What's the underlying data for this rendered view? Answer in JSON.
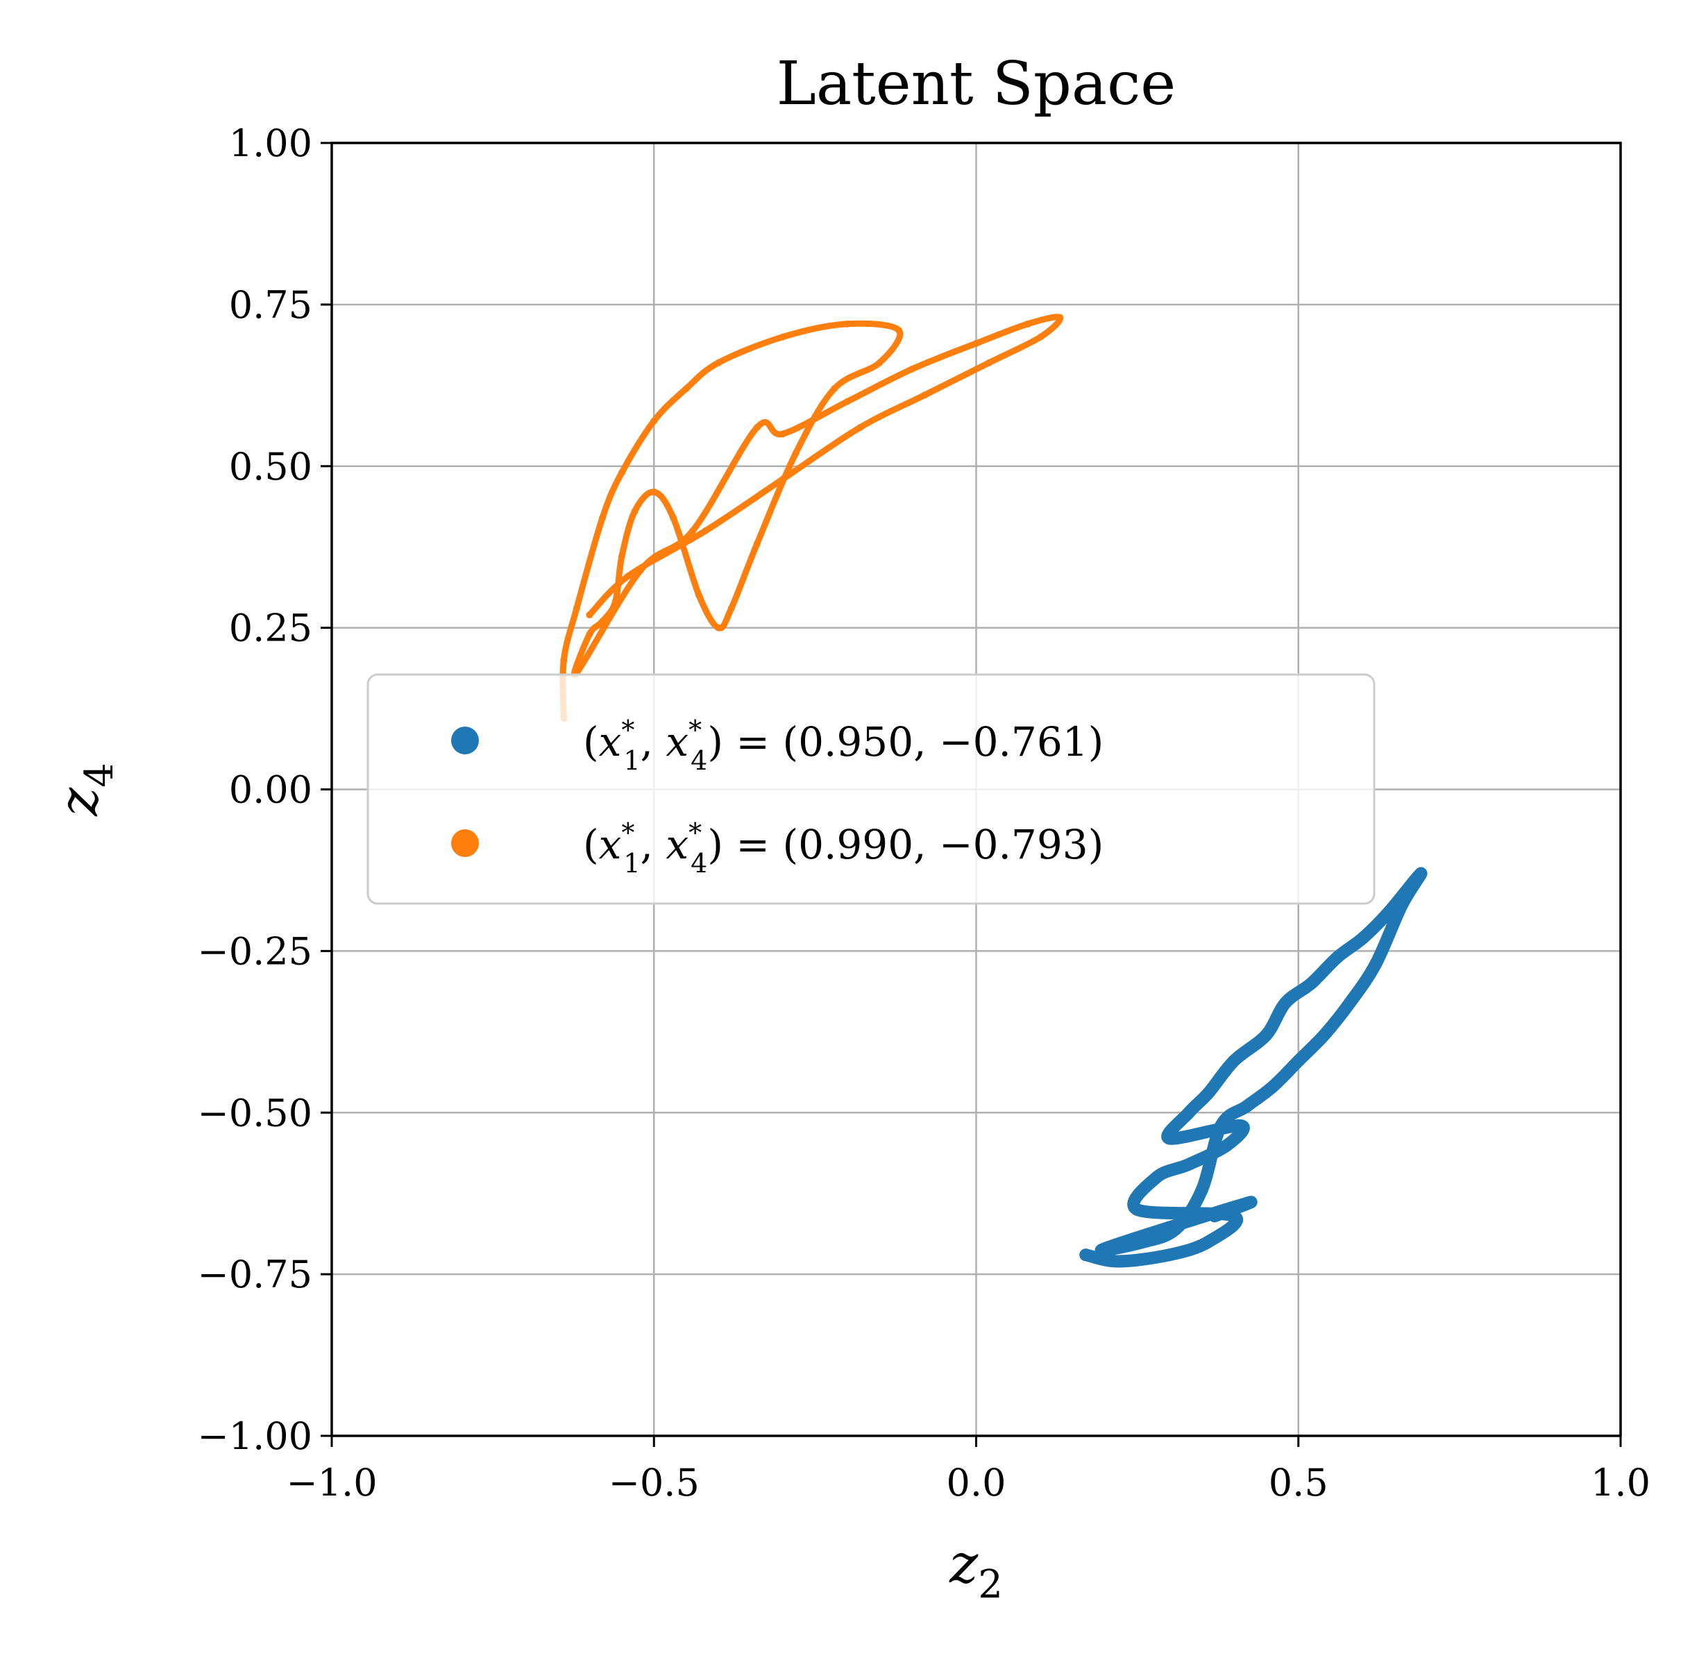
{
  "chart_data": {
    "type": "scatter",
    "title": "Latent Space",
    "xlabel": {
      "base": "z",
      "sub": "2"
    },
    "ylabel": {
      "base": "z",
      "sub": "4"
    },
    "xlim": [
      -1.0,
      1.0
    ],
    "ylim": [
      -1.0,
      1.0
    ],
    "xticks": [
      -1.0,
      -0.5,
      0.0,
      0.5,
      1.0
    ],
    "xtick_labels": [
      "−1.0",
      "−0.5",
      "0.0",
      "0.5",
      "1.0"
    ],
    "yticks": [
      1.0,
      0.75,
      0.5,
      0.25,
      0.0,
      -0.25,
      -0.5,
      -0.75,
      -1.0
    ],
    "ytick_labels": [
      "1.00",
      "0.75",
      "0.50",
      "0.25",
      "0.00",
      "−0.25",
      "−0.50",
      "−0.75",
      "−1.00"
    ],
    "grid": true,
    "legend_position": "center-left",
    "series": [
      {
        "name": "(x*1, x*4) = (0.950, −0.761)",
        "name_values": "(0.950, −0.761)",
        "color": "#1f77b4",
        "points": [
          [
            0.17,
            -0.72
          ],
          [
            0.22,
            -0.73
          ],
          [
            0.3,
            -0.72
          ],
          [
            0.36,
            -0.7
          ],
          [
            0.4,
            -0.66
          ],
          [
            0.25,
            -0.65
          ],
          [
            0.28,
            -0.6
          ],
          [
            0.33,
            -0.58
          ],
          [
            0.39,
            -0.55
          ],
          [
            0.41,
            -0.52
          ],
          [
            0.3,
            -0.54
          ],
          [
            0.33,
            -0.5
          ],
          [
            0.36,
            -0.47
          ],
          [
            0.4,
            -0.42
          ],
          [
            0.45,
            -0.38
          ],
          [
            0.48,
            -0.33
          ],
          [
            0.52,
            -0.3
          ],
          [
            0.56,
            -0.26
          ],
          [
            0.6,
            -0.23
          ],
          [
            0.64,
            -0.19
          ],
          [
            0.69,
            -0.13
          ],
          [
            0.66,
            -0.18
          ],
          [
            0.62,
            -0.27
          ],
          [
            0.58,
            -0.33
          ],
          [
            0.54,
            -0.38
          ],
          [
            0.5,
            -0.42
          ],
          [
            0.46,
            -0.46
          ],
          [
            0.42,
            -0.49
          ],
          [
            0.38,
            -0.52
          ],
          [
            0.35,
            -0.62
          ],
          [
            0.31,
            -0.68
          ],
          [
            0.26,
            -0.7
          ],
          [
            0.2,
            -0.71
          ],
          [
            0.42,
            -0.64
          ],
          [
            0.37,
            -0.66
          ]
        ]
      },
      {
        "name": "(x*1, x*4) = (0.990, −0.793)",
        "name_values": "(0.990, −0.793)",
        "color": "#ff7f0e",
        "points": [
          [
            -0.64,
            0.11
          ],
          [
            -0.64,
            0.2
          ],
          [
            -0.62,
            0.28
          ],
          [
            -0.58,
            0.42
          ],
          [
            -0.55,
            0.49
          ],
          [
            -0.5,
            0.57
          ],
          [
            -0.45,
            0.62
          ],
          [
            -0.4,
            0.66
          ],
          [
            -0.3,
            0.7
          ],
          [
            -0.2,
            0.72
          ],
          [
            -0.12,
            0.71
          ],
          [
            -0.15,
            0.66
          ],
          [
            -0.22,
            0.62
          ],
          [
            -0.28,
            0.52
          ],
          [
            -0.34,
            0.38
          ],
          [
            -0.38,
            0.28
          ],
          [
            -0.4,
            0.25
          ],
          [
            -0.43,
            0.3
          ],
          [
            -0.47,
            0.42
          ],
          [
            -0.5,
            0.46
          ],
          [
            -0.53,
            0.43
          ],
          [
            -0.55,
            0.36
          ],
          [
            -0.56,
            0.29
          ],
          [
            -0.58,
            0.26
          ],
          [
            -0.6,
            0.24
          ],
          [
            -0.62,
            0.18
          ],
          [
            -0.52,
            0.34
          ],
          [
            -0.44,
            0.4
          ],
          [
            -0.34,
            0.56
          ],
          [
            -0.3,
            0.55
          ],
          [
            -0.2,
            0.6
          ],
          [
            -0.1,
            0.65
          ],
          [
            0.0,
            0.69
          ],
          [
            0.08,
            0.72
          ],
          [
            0.13,
            0.73
          ],
          [
            0.1,
            0.7
          ],
          [
            0.02,
            0.66
          ],
          [
            -0.08,
            0.61
          ],
          [
            -0.18,
            0.56
          ],
          [
            -0.3,
            0.48
          ],
          [
            -0.42,
            0.4
          ],
          [
            -0.54,
            0.33
          ],
          [
            -0.6,
            0.27
          ]
        ]
      }
    ]
  }
}
